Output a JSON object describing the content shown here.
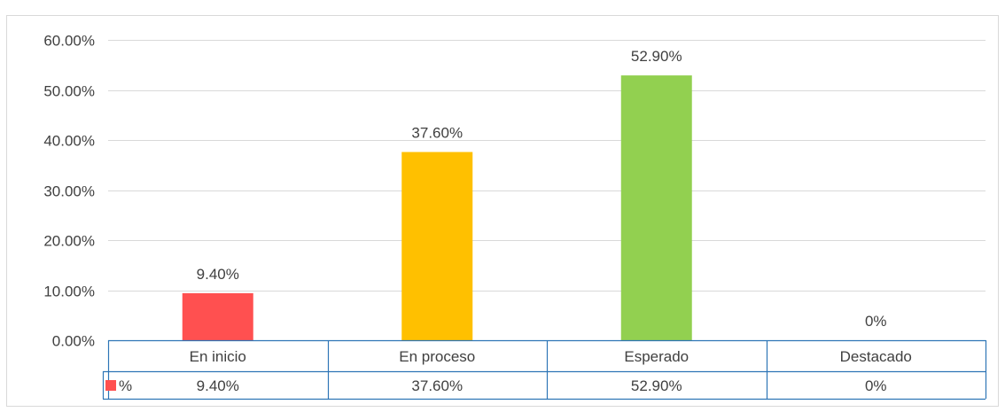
{
  "chart_data": {
    "type": "bar",
    "title": "",
    "xlabel": "",
    "ylabel": "",
    "categories": [
      "En inicio",
      "En proceso",
      "Esperado",
      "Destacado"
    ],
    "series": [
      {
        "name": "%",
        "values": [
          9.4,
          37.6,
          52.9,
          0
        ],
        "labels": [
          "9.40%",
          "37.60%",
          "52.90%",
          "0%"
        ],
        "colors": [
          "#ff5050",
          "#ffc000",
          "#92d050",
          "#92d050"
        ],
        "legend_color": "#ff5050"
      }
    ],
    "ylim": [
      0,
      60
    ],
    "yticks": [
      0,
      10,
      20,
      30,
      40,
      50,
      60
    ],
    "ytick_labels": [
      "0.00%",
      "10.00%",
      "20.00%",
      "30.00%",
      "40.00%",
      "50.00%",
      "60.00%"
    ],
    "grid": true,
    "data_table": true,
    "colors": {
      "grid": "#d9d9d9",
      "table_border": "#2e75b6",
      "text": "#404040"
    }
  }
}
